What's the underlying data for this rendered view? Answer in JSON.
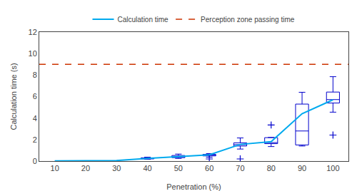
{
  "chart_data": {
    "type": "box",
    "xlabel": "Penetration (%)",
    "ylabel": "Calculation time (s)",
    "xlim": [
      5,
      105
    ],
    "xticks": [
      10,
      20,
      30,
      40,
      50,
      60,
      70,
      80,
      90,
      100
    ],
    "ylim": [
      0,
      12
    ],
    "yticks": [
      0,
      2,
      4,
      6,
      8,
      10,
      12
    ],
    "grid": false,
    "legend": "top",
    "series": [
      {
        "name": "Calculation time",
        "type": "line",
        "color": "#00aaee",
        "x": [
          10,
          20,
          30,
          40,
          50,
          60,
          70,
          80,
          90,
          100
        ],
        "values": [
          0.02,
          0.03,
          0.05,
          0.25,
          0.42,
          0.58,
          1.55,
          1.8,
          4.4,
          5.7
        ]
      },
      {
        "name": "Perception zone passing time",
        "type": "hline",
        "color": "#cc3300",
        "line_style": "dashed",
        "values": [
          9.0
        ]
      },
      {
        "type": "box",
        "color": "#0000cc",
        "marker": "plus",
        "x": [
          40,
          50,
          60,
          70,
          80,
          90,
          100
        ],
        "q1": [
          0.2,
          0.32,
          0.48,
          1.4,
          1.62,
          1.5,
          5.4
        ],
        "median": [
          0.26,
          0.4,
          0.55,
          1.53,
          1.72,
          2.8,
          5.72
        ],
        "q3": [
          0.3,
          0.52,
          0.62,
          1.7,
          2.18,
          5.3,
          6.42
        ],
        "whislo": [
          0.17,
          0.25,
          0.36,
          1.12,
          1.35,
          1.4,
          4.55
        ],
        "whishi": [
          0.36,
          0.65,
          0.7,
          2.15,
          2.2,
          6.4,
          7.85
        ],
        "fliers": [
          [],
          [],
          [
            0.2
          ],
          [
            0.2
          ],
          [
            3.35
          ],
          [],
          [
            2.42
          ]
        ]
      }
    ]
  }
}
